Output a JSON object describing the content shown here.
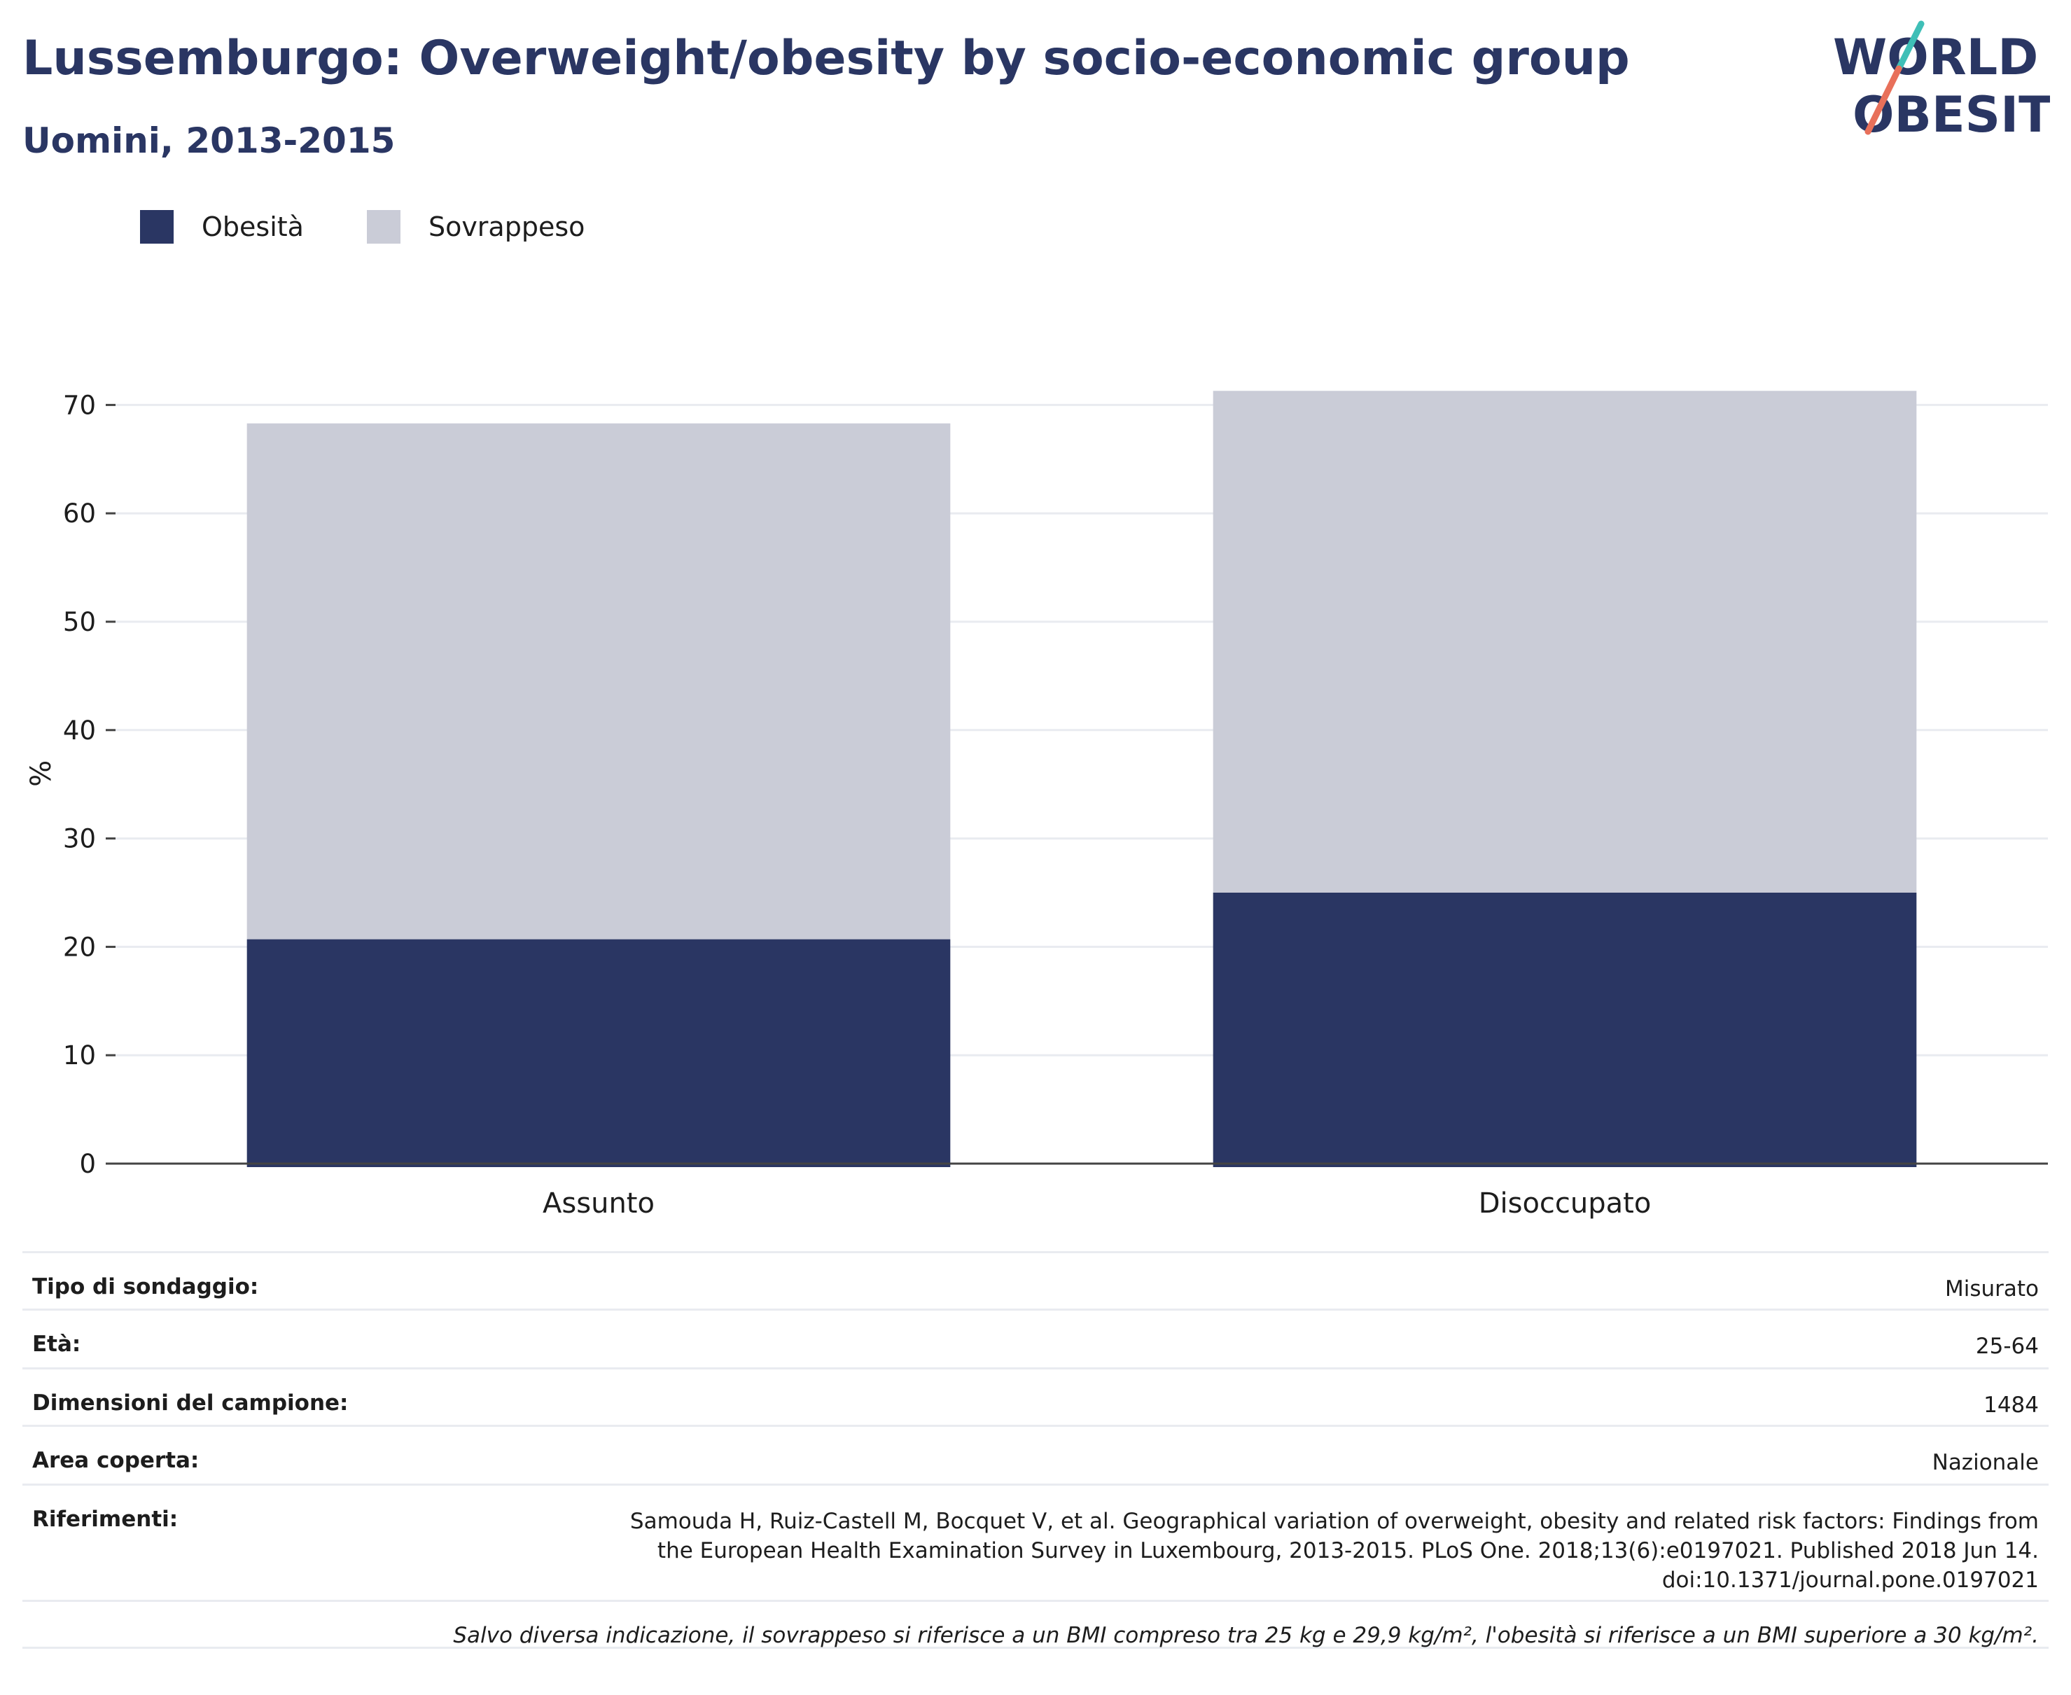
{
  "header": {
    "title": "Lussemburgo: Overweight/obesity by socio-economic group",
    "subtitle": "Uomini, 2013-2015",
    "logo_text": [
      "WORLD",
      "OBESITY"
    ]
  },
  "colors": {
    "obesita": "#2a3663",
    "sovrappeso": "#caccd7",
    "title": "#2a3663",
    "logo_teal": "#3fbfb7",
    "logo_coral": "#e8705a"
  },
  "chart_data": {
    "type": "bar",
    "stacked": true,
    "categories": [
      "Assunto",
      "Disoccupato"
    ],
    "series": [
      {
        "name": "Obesità",
        "values": [
          20.7,
          25.0
        ]
      },
      {
        "name": "Sovrappeso",
        "values": [
          47.6,
          46.3
        ]
      }
    ],
    "ylabel": "%",
    "ylim": [
      0,
      70
    ],
    "yticks": [
      0,
      10,
      20,
      30,
      40,
      50,
      60,
      70
    ],
    "grid": true,
    "legend": "top-left"
  },
  "info": {
    "rows": [
      {
        "label": "Tipo di sondaggio:",
        "value": "Misurato"
      },
      {
        "label": "Età:",
        "value": "25-64"
      },
      {
        "label": "Dimensioni del campione:",
        "value": "1484"
      },
      {
        "label": "Area coperta:",
        "value": "Nazionale"
      },
      {
        "label": "Riferimenti:",
        "value": "Samouda H, Ruiz-Castell M, Bocquet V, et al. Geographical variation of overweight, obesity and related risk factors: Findings from the European Health Examination Survey in Luxembourg, 2013-2015. PLoS One. 2018;13(6):e0197021. Published 2018 Jun 14. doi:10.1371/journal.pone.0197021"
      }
    ],
    "note": "Salvo diversa indicazione, il sovrappeso si riferisce a un BMI compreso tra 25 kg e 29,9 kg/m², l'obesità si riferisce a un BMI superiore a 30 kg/m²."
  }
}
